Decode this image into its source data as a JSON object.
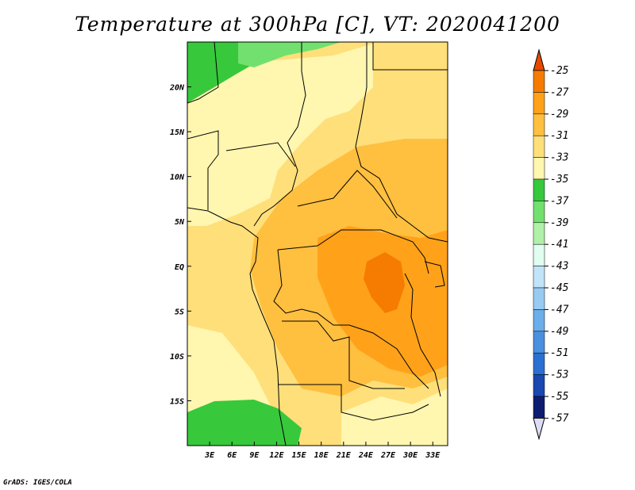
{
  "title": "Temperature at 300hPa [C], VT: 2020041200",
  "credit": "GrADS: IGES/COLA",
  "map": {
    "lon_range": [
      0,
      35
    ],
    "lat_range": [
      -20,
      25
    ],
    "x_ticks": [
      {
        "value": 3,
        "label": "3E"
      },
      {
        "value": 6,
        "label": "6E"
      },
      {
        "value": 9,
        "label": "9E"
      },
      {
        "value": 12,
        "label": "12E"
      },
      {
        "value": 15,
        "label": "15E"
      },
      {
        "value": 18,
        "label": "18E"
      },
      {
        "value": 21,
        "label": "21E"
      },
      {
        "value": 24,
        "label": "24E"
      },
      {
        "value": 27,
        "label": "27E"
      },
      {
        "value": 30,
        "label": "30E"
      },
      {
        "value": 33,
        "label": "33E"
      }
    ],
    "y_ticks": [
      {
        "value": 20,
        "label": "20N"
      },
      {
        "value": 15,
        "label": "15N"
      },
      {
        "value": 10,
        "label": "10N"
      },
      {
        "value": 5,
        "label": "5N"
      },
      {
        "value": 0,
        "label": "EQ"
      },
      {
        "value": -5,
        "label": "5S"
      },
      {
        "value": -10,
        "label": "10S"
      },
      {
        "value": -15,
        "label": "15S"
      }
    ]
  },
  "colorbar": {
    "labels": [
      "-25",
      "-27",
      "-29",
      "-31",
      "-33",
      "-35",
      "-37",
      "-39",
      "-41",
      "-43",
      "-45",
      "-47",
      "-49",
      "-51",
      "-53",
      "-55",
      "-57"
    ],
    "colors": [
      "#e64a00",
      "#f57c00",
      "#ffa21a",
      "#ffbf3f",
      "#ffdf7a",
      "#fff6b0",
      "#37c83c",
      "#72e06e",
      "#b0f0a8",
      "#e0fff0",
      "#c2e4f8",
      "#98cbf2",
      "#6aaeea",
      "#4a90de",
      "#2a70d2",
      "#1848b0",
      "#0e1c70",
      "#dcdcf5"
    ]
  }
}
